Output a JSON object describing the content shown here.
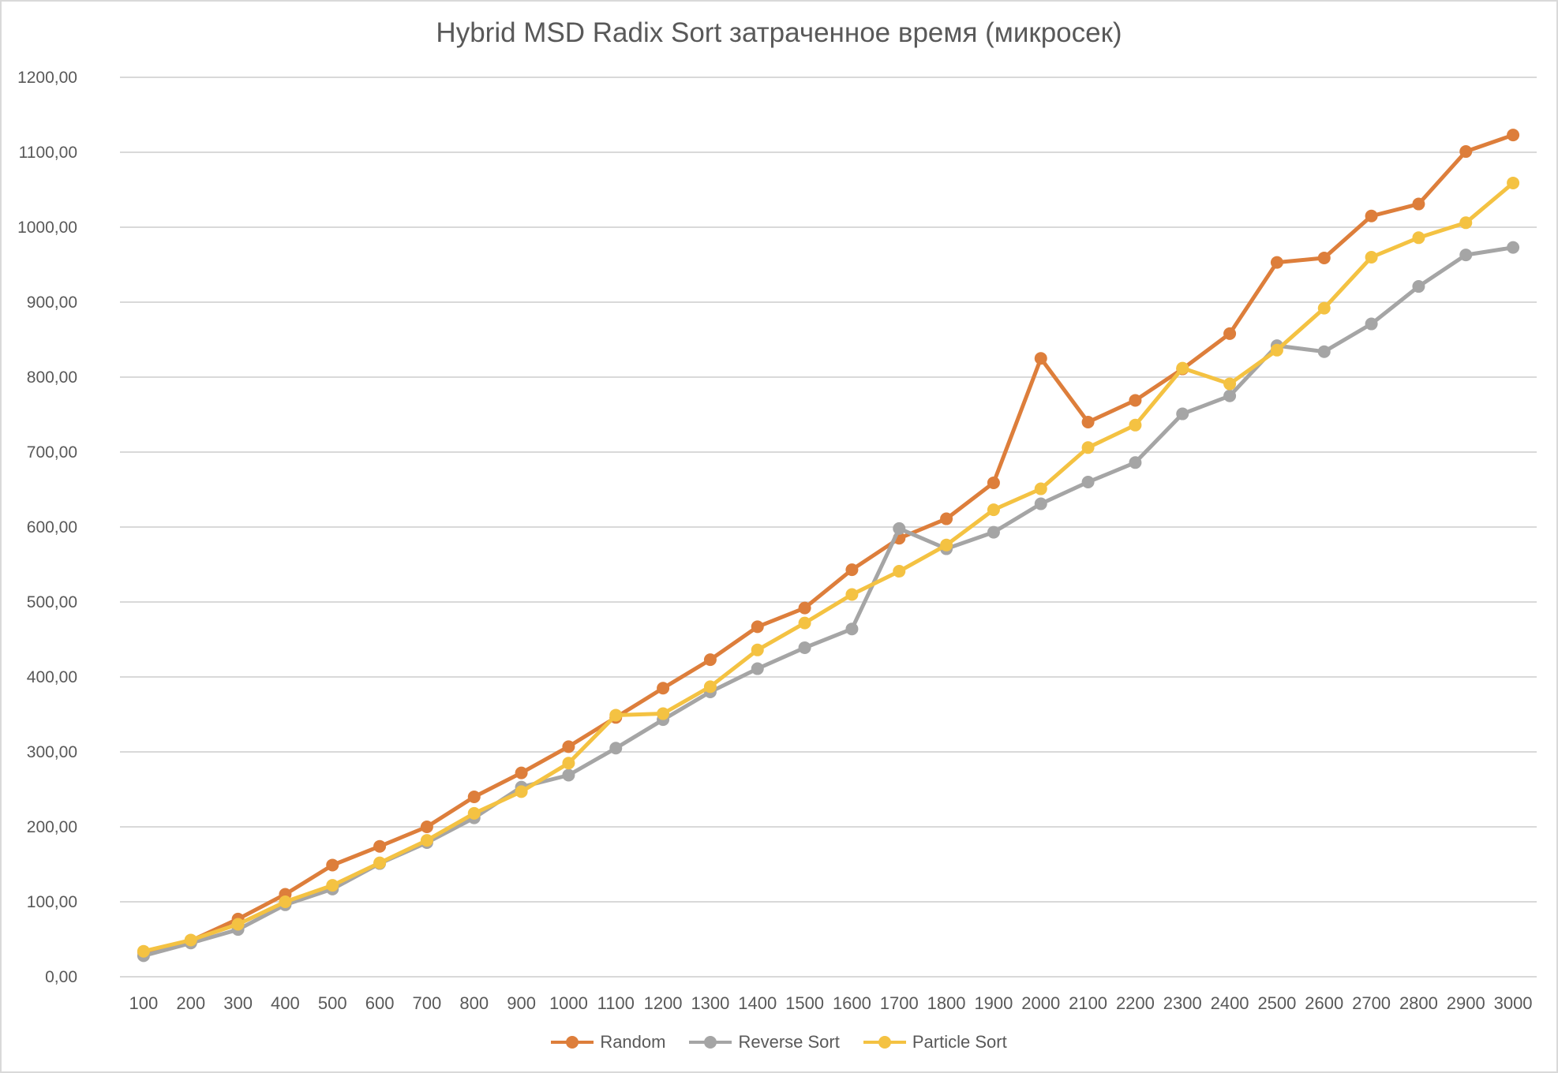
{
  "chart_data": {
    "type": "line",
    "title": "Hybrid MSD Radix Sort затраченное время (микросек)",
    "xlabel": "",
    "ylabel": "",
    "ylim": [
      0,
      1200
    ],
    "y_ticks": [
      "0,00",
      "100,00",
      "200,00",
      "300,00",
      "400,00",
      "500,00",
      "600,00",
      "700,00",
      "800,00",
      "900,00",
      "1000,00",
      "1100,00",
      "1200,00"
    ],
    "categories": [
      "100",
      "200",
      "300",
      "400",
      "500",
      "600",
      "700",
      "800",
      "900",
      "1000",
      "1100",
      "1200",
      "1300",
      "1400",
      "1500",
      "1600",
      "1700",
      "1800",
      "1900",
      "2000",
      "2100",
      "2200",
      "2300",
      "2400",
      "2500",
      "2600",
      "2700",
      "2800",
      "2900",
      "3000"
    ],
    "grid": "horizontal",
    "legend_position": "bottom",
    "series": [
      {
        "name": "Random",
        "color": "#dd7e3b",
        "values": [
          33,
          48,
          77,
          110,
          149,
          174,
          200,
          240,
          272,
          307,
          346,
          385,
          423,
          467,
          492,
          543,
          585,
          611,
          659,
          825,
          740,
          769,
          811,
          858,
          953,
          959,
          1015,
          1031,
          1101,
          1123
        ]
      },
      {
        "name": "Reverse Sort",
        "color": "#a5a5a5",
        "values": [
          28,
          45,
          63,
          96,
          117,
          151,
          179,
          212,
          253,
          269,
          305,
          343,
          380,
          411,
          439,
          464,
          598,
          571,
          593,
          631,
          660,
          686,
          751,
          775,
          842,
          834,
          871,
          921,
          963,
          973
        ]
      },
      {
        "name": "Particle Sort",
        "color": "#f4c242",
        "values": [
          34,
          49,
          70,
          100,
          122,
          152,
          182,
          218,
          247,
          285,
          349,
          351,
          387,
          436,
          472,
          510,
          541,
          576,
          623,
          651,
          706,
          736,
          812,
          791,
          836,
          892,
          960,
          986,
          1006,
          1059
        ]
      }
    ]
  }
}
